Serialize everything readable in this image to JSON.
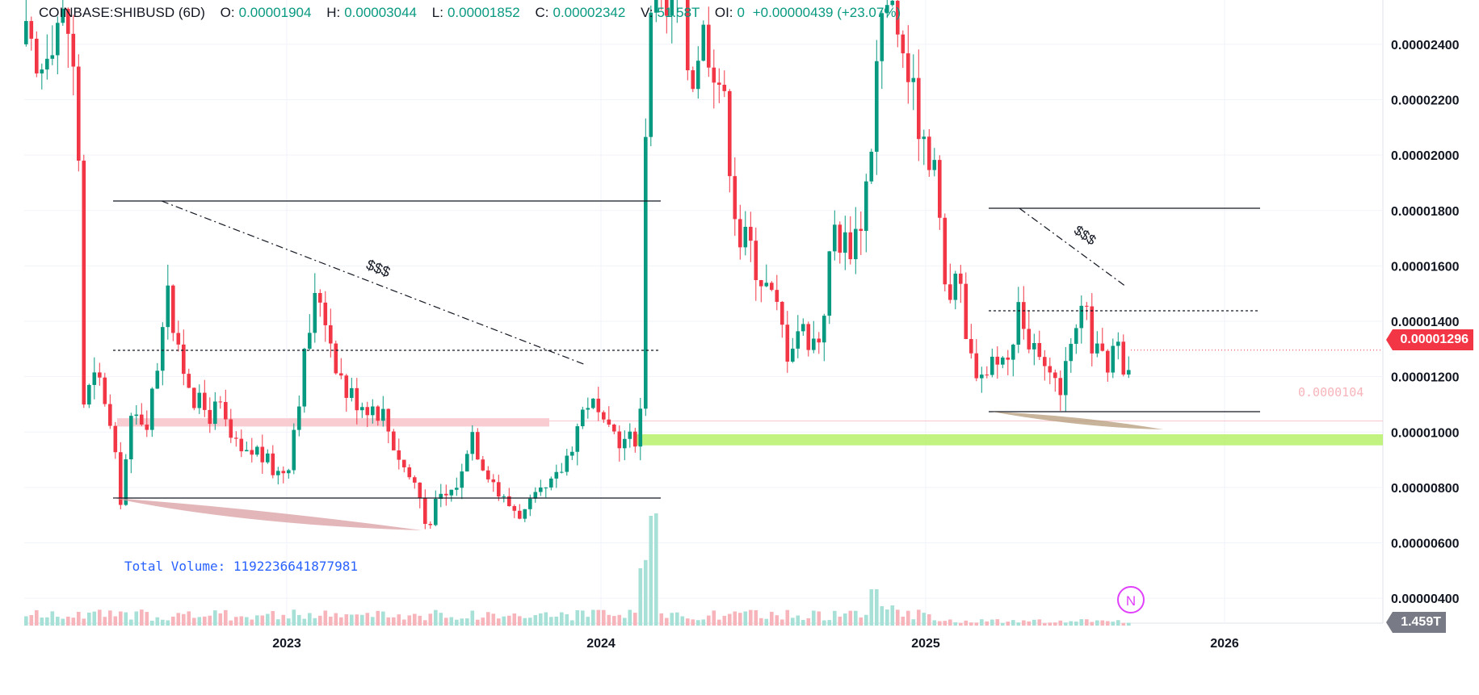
{
  "legend": {
    "symbol": "COINBASE:SHIBUSD (6D)",
    "open_label": "O:",
    "open": "0.00001904",
    "high_label": "H:",
    "high": "0.00003044",
    "low_label": "L:",
    "low": "0.00001852",
    "close_label": "C:",
    "close": "0.00002342",
    "volume_label": "V:",
    "volume": "51.58T",
    "oi_label": "OI:",
    "oi": "0",
    "change": "+0.00000439 (+23.07%)"
  },
  "volume_label": "Total Volume: 1192236641877981",
  "price_badge": "0.00001296",
  "volume_badge": "1.459T",
  "ghost_level": "0.0000104",
  "indicator_icon": "N",
  "annotations": {
    "left_triangle_text": "$$$",
    "right_triangle_text": "$$$"
  },
  "colors": {
    "up": "#089981",
    "down": "#f23645",
    "up_volume": "#a6e0d6",
    "down_volume": "#f7b5bb",
    "support_zone": "#b7f06a",
    "resistance_zone": "#f8c6cd",
    "grid": "#f0f3fa"
  },
  "chart_data": {
    "type": "candlestick",
    "symbol": "COINBASE:SHIBUSD",
    "interval": "6D",
    "x_tick_labels": [
      "2023",
      "2024",
      "2025",
      "2026"
    ],
    "y_tick_labels": [
      "0.00000400",
      "0.00000600",
      "0.00000800",
      "0.00001000",
      "0.00001200",
      "0.00001400",
      "0.00001600",
      "0.00001800",
      "0.00002000",
      "0.00002200",
      "0.00002400"
    ],
    "ylim": [
      3.1e-06,
      2.56e-05
    ],
    "grid": true,
    "last_price": 1.296e-05,
    "trend_segments": [
      {
        "kind": "support_zone",
        "low": 9.52e-06,
        "high": 9.92e-06
      },
      {
        "kind": "resistance_zone",
        "low": 1.02e-05,
        "high": 1.05e-05
      }
    ],
    "volume": {
      "last": "1.459T",
      "pane": "bottom"
    }
  }
}
